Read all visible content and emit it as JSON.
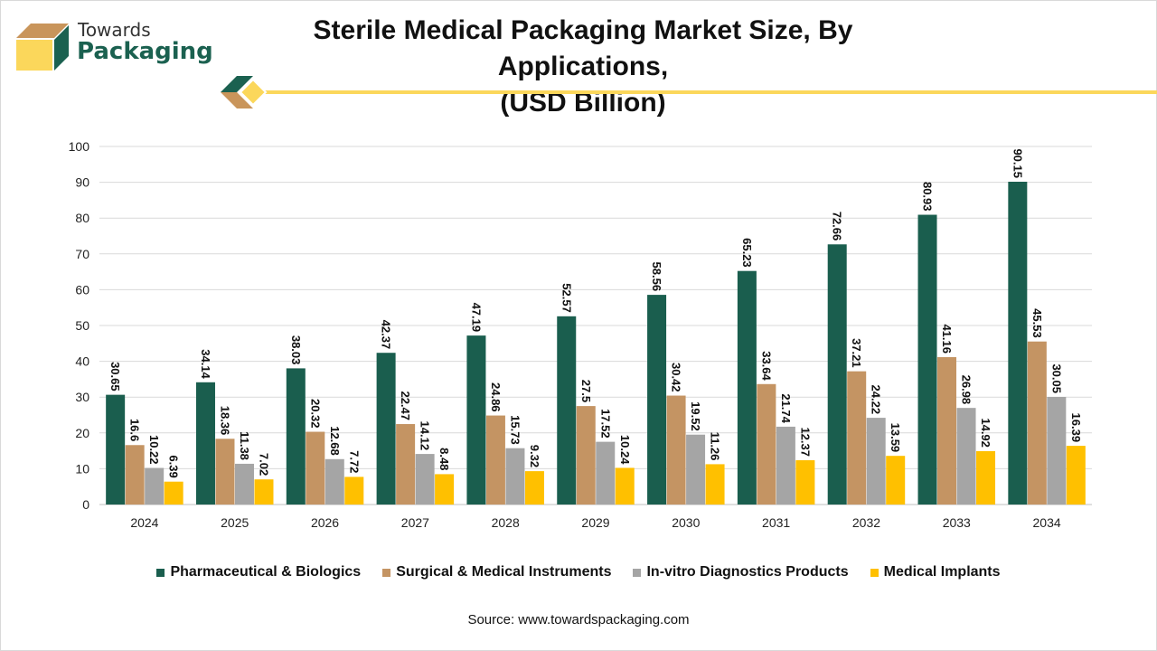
{
  "brand": {
    "line1": "Towards",
    "line2": "Packaging",
    "colors": {
      "green": "#1b6150",
      "tan": "#c9955b",
      "yellow": "#fbd75b"
    }
  },
  "title_line1": "Sterile Medical Packaging Market Size, By Applications,",
  "title_line2": "(USD Billion)",
  "source": "Source: www.towardspackaging.com",
  "chart_data": {
    "type": "bar",
    "title": "Sterile Medical Packaging Market Size, By Applications, (USD Billion)",
    "categories": [
      "2024",
      "2025",
      "2026",
      "2027",
      "2028",
      "2029",
      "2030",
      "2031",
      "2032",
      "2033",
      "2034"
    ],
    "ylim": [
      0,
      100
    ],
    "yticks": [
      0,
      10,
      20,
      30,
      40,
      50,
      60,
      70,
      80,
      90,
      100
    ],
    "grid": true,
    "legend_position": "bottom",
    "series": [
      {
        "name": "Pharmaceutical & Biologics",
        "color": "#1a5e4e",
        "values": [
          30.65,
          34.14,
          38.03,
          42.37,
          47.19,
          52.57,
          58.56,
          65.23,
          72.66,
          80.93,
          90.15
        ],
        "labels": [
          "30.65",
          "34.14",
          "38.03",
          "42.37",
          "47.19",
          "52.57",
          "58.56",
          "65.23",
          "72.66",
          "80.93",
          "90.15"
        ]
      },
      {
        "name": "Surgical & Medical Instruments",
        "color": "#c49463",
        "values": [
          16.6,
          18.36,
          20.32,
          22.47,
          24.86,
          27.5,
          30.42,
          33.64,
          37.21,
          41.16,
          45.53
        ],
        "labels": [
          "16.6",
          "18.36",
          "20.32",
          "22.47",
          "24.86",
          "27.5",
          "30.42",
          "33.64",
          "37.21",
          "41.16",
          "45.53"
        ]
      },
      {
        "name": "In-vitro Diagnostics Products",
        "color": "#a5a5a5",
        "values": [
          10.22,
          11.38,
          12.68,
          14.12,
          15.73,
          17.52,
          19.52,
          21.74,
          24.22,
          26.98,
          30.05
        ],
        "labels": [
          "10.22",
          "11.38",
          "12.68",
          "14.12",
          "15.73",
          "17.52",
          "19.52",
          "21.74",
          "24.22",
          "26.98",
          "30.05"
        ]
      },
      {
        "name": "Medical Implants",
        "color": "#ffc000",
        "values": [
          6.39,
          7.02,
          7.72,
          8.48,
          9.32,
          10.24,
          11.26,
          12.37,
          13.59,
          14.92,
          16.39
        ],
        "labels": [
          "6.39",
          "7.02",
          "7.72",
          "8.48",
          "9.32",
          "10.24",
          "11.26",
          "12.37",
          "13.59",
          "14.92",
          "16.39"
        ]
      }
    ]
  }
}
